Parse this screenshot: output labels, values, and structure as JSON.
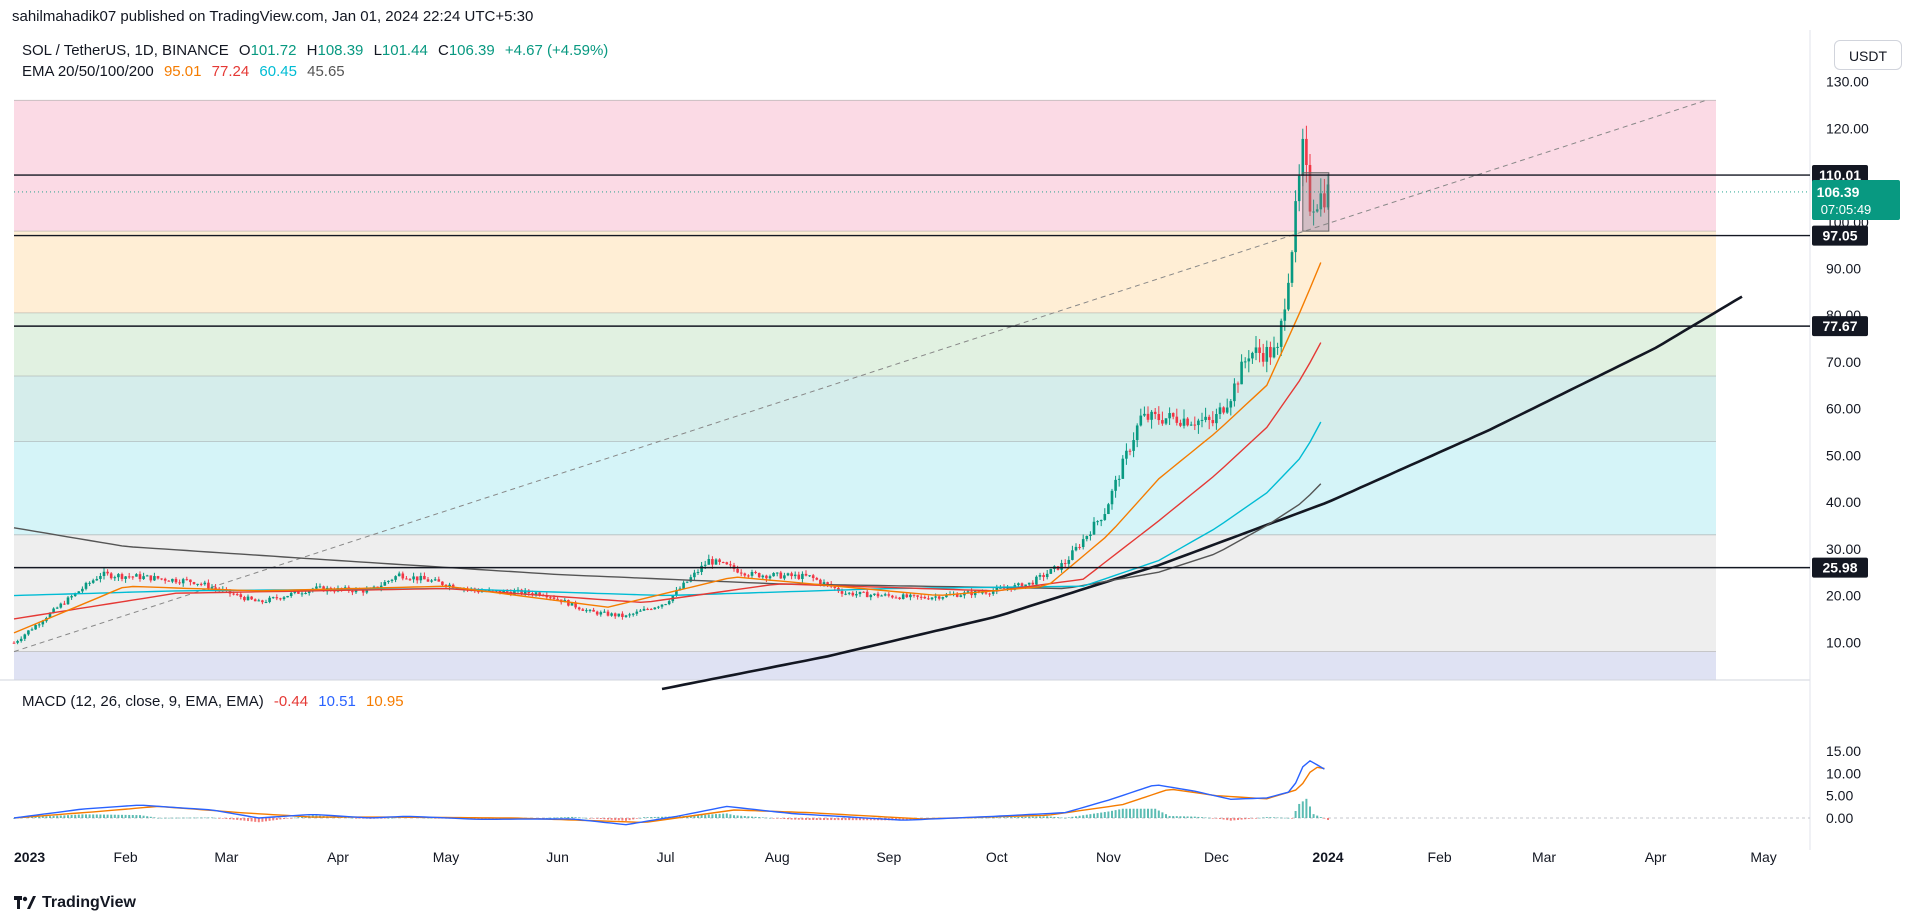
{
  "header": {
    "publisher": "sahilmahadik07 published on TradingView.com, Jan 01, 2024 22:24 UTC+5:30"
  },
  "symbol_legend": {
    "symbol": "SOL / TetherUS, 1D, BINANCE",
    "open_label": "O",
    "open": "101.72",
    "high_label": "H",
    "high": "108.39",
    "low_label": "L",
    "low": "101.44",
    "close_label": "C",
    "close": "106.39",
    "change": "+4.67 (+4.59%)"
  },
  "ema_legend": {
    "label": "EMA 20/50/100/200",
    "ema20": "95.01",
    "ema50": "77.24",
    "ema100": "60.45",
    "ema200": "45.65"
  },
  "macd_legend": {
    "label": "MACD (12, 26, close, 9, EMA, EMA)",
    "histogram": "-0.44",
    "macd": "10.51",
    "signal": "10.95"
  },
  "currency_button": "USDT",
  "colors": {
    "up": "#089981",
    "down": "#f23645",
    "ema20": "#f57c00",
    "ema50": "#e53935",
    "ema100": "#00bcd4",
    "ema200": "#555555",
    "macd": "#2962ff",
    "signal": "#f57c00"
  },
  "price_tags": {
    "last_price": "106.39",
    "countdown": "07:05:49",
    "levels": [
      "110.01",
      "97.05",
      "77.67",
      "25.98"
    ]
  },
  "footer": {
    "brand": "TradingView"
  },
  "chart_data": {
    "type": "candlestick",
    "price_axis_ticks": [
      "130.00",
      "120.00",
      "110.00",
      "100.00",
      "90.00",
      "80.00",
      "70.00",
      "60.00",
      "50.00",
      "40.00",
      "30.00",
      "20.00",
      "10.00"
    ],
    "price_ylim": [
      0,
      132
    ],
    "macd_axis_ticks": [
      "15.00",
      "10.00",
      "5.00",
      "0.00"
    ],
    "macd_ylim": [
      -3,
      16
    ],
    "time_axis_labels": [
      "2023",
      "Feb",
      "Mar",
      "Apr",
      "May",
      "Jun",
      "Jul",
      "Aug",
      "Sep",
      "Oct",
      "Nov",
      "Dec",
      "2024",
      "Feb",
      "Mar",
      "Apr",
      "May"
    ],
    "horizontal_levels": [
      110.01,
      97.05,
      77.67,
      25.98
    ],
    "fib_zones": [
      {
        "from": 126.0,
        "to": 98.0,
        "color": "#f8bbd0"
      },
      {
        "from": 98.0,
        "to": 80.5,
        "color": "#ffe0b2"
      },
      {
        "from": 80.5,
        "to": 67.0,
        "color": "#c8e6c9"
      },
      {
        "from": 67.0,
        "to": 53.0,
        "color": "#b2dfdb"
      },
      {
        "from": 53.0,
        "to": 33.0,
        "color": "#b2ebf2"
      },
      {
        "from": 33.0,
        "to": 8.0,
        "color": "#e0e0e0"
      },
      {
        "from": 8.0,
        "to": 0,
        "color": "#c5cae9"
      }
    ],
    "price_keypoints": [
      [
        "2023-01-01",
        9.9
      ],
      [
        "2023-01-14",
        18.0
      ],
      [
        "2023-01-25",
        24.5
      ],
      [
        "2023-02-05",
        24.0
      ],
      [
        "2023-02-20",
        23.0
      ],
      [
        "2023-03-10",
        18.5
      ],
      [
        "2023-03-25",
        21.5
      ],
      [
        "2023-04-10",
        21.0
      ],
      [
        "2023-04-18",
        24.5
      ],
      [
        "2023-05-10",
        21.0
      ],
      [
        "2023-05-28",
        20.5
      ],
      [
        "2023-06-10",
        16.5
      ],
      [
        "2023-06-20",
        15.5
      ],
      [
        "2023-07-01",
        18.5
      ],
      [
        "2023-07-13",
        27.5
      ],
      [
        "2023-07-25",
        24.5
      ],
      [
        "2023-08-10",
        24.0
      ],
      [
        "2023-08-20",
        20.5
      ],
      [
        "2023-09-10",
        19.5
      ],
      [
        "2023-09-30",
        21.0
      ],
      [
        "2023-10-10",
        22.5
      ],
      [
        "2023-10-20",
        27.0
      ],
      [
        "2023-10-31",
        38.0
      ],
      [
        "2023-11-10",
        58.0
      ],
      [
        "2023-11-20",
        58.0
      ],
      [
        "2023-11-30",
        57.0
      ],
      [
        "2023-12-05",
        63.0
      ],
      [
        "2023-12-10",
        72.0
      ],
      [
        "2023-12-18",
        72.0
      ],
      [
        "2023-12-22",
        95.0
      ],
      [
        "2023-12-25",
        115.0
      ],
      [
        "2023-12-27",
        104.0
      ],
      [
        "2024-01-01",
        106.4
      ]
    ],
    "ema20_keypoints": [
      [
        "2023-01-01",
        12.0
      ],
      [
        "2023-02-01",
        22.0
      ],
      [
        "2023-03-10",
        21.0
      ],
      [
        "2023-05-01",
        22.0
      ],
      [
        "2023-06-15",
        17.5
      ],
      [
        "2023-07-20",
        24.0
      ],
      [
        "2023-09-15",
        20.0
      ],
      [
        "2023-10-15",
        22.0
      ],
      [
        "2023-11-01",
        33.0
      ],
      [
        "2023-11-15",
        45.0
      ],
      [
        "2023-12-01",
        55.0
      ],
      [
        "2023-12-15",
        65.0
      ],
      [
        "2023-12-25",
        82.0
      ],
      [
        "2024-01-01",
        95.0
      ]
    ],
    "ema50_keypoints": [
      [
        "2023-01-01",
        15.0
      ],
      [
        "2023-02-15",
        20.5
      ],
      [
        "2023-05-01",
        21.5
      ],
      [
        "2023-06-25",
        18.5
      ],
      [
        "2023-08-01",
        22.5
      ],
      [
        "2023-10-01",
        21.0
      ],
      [
        "2023-10-25",
        23.5
      ],
      [
        "2023-11-15",
        36.0
      ],
      [
        "2023-12-01",
        46.0
      ],
      [
        "2023-12-15",
        56.0
      ],
      [
        "2023-12-25",
        67.0
      ],
      [
        "2024-01-01",
        77.0
      ]
    ],
    "ema100_keypoints": [
      [
        "2023-01-01",
        20.0
      ],
      [
        "2023-02-15",
        21.0
      ],
      [
        "2023-05-01",
        21.5
      ],
      [
        "2023-07-01",
        20.0
      ],
      [
        "2023-09-01",
        21.5
      ],
      [
        "2023-10-25",
        22.0
      ],
      [
        "2023-11-15",
        27.5
      ],
      [
        "2023-12-01",
        34.5
      ],
      [
        "2023-12-15",
        42.0
      ],
      [
        "2023-12-25",
        50.0
      ],
      [
        "2024-01-01",
        60.0
      ]
    ],
    "ema200_keypoints": [
      [
        "2023-01-01",
        34.5
      ],
      [
        "2023-02-01",
        30.5
      ],
      [
        "2023-04-01",
        27.5
      ],
      [
        "2023-06-01",
        24.5
      ],
      [
        "2023-08-01",
        22.5
      ],
      [
        "2023-10-20",
        21.5
      ],
      [
        "2023-11-15",
        25.0
      ],
      [
        "2023-12-01",
        29.0
      ],
      [
        "2023-12-15",
        35.0
      ],
      [
        "2023-12-25",
        40.0
      ],
      [
        "2024-01-01",
        45.5
      ]
    ],
    "curve_keypoints": [
      [
        "2023-06-30",
        0.0
      ],
      [
        "2023-08-15",
        7.0
      ],
      [
        "2023-10-01",
        15.5
      ],
      [
        "2023-11-15",
        26.5
      ],
      [
        "2024-01-01",
        40.0
      ],
      [
        "2024-02-15",
        55.5
      ],
      [
        "2024-04-01",
        73.0
      ],
      [
        "2024-04-25",
        84.0
      ]
    ],
    "trendline": {
      "from": [
        "2023-01-01",
        8.0
      ],
      "to": [
        "2024-04-15",
        126.0
      ]
    },
    "macd_keypoints": [
      [
        "2023-01-01",
        0.0
      ],
      [
        "2023-01-20",
        2.0
      ],
      [
        "2023-02-05",
        2.9
      ],
      [
        "2023-02-25",
        1.8
      ],
      [
        "2023-03-10",
        0.0
      ],
      [
        "2023-03-25",
        0.8
      ],
      [
        "2023-04-10",
        0.0
      ],
      [
        "2023-04-20",
        0.4
      ],
      [
        "2023-05-10",
        -0.3
      ],
      [
        "2023-06-05",
        -0.2
      ],
      [
        "2023-06-20",
        -1.5
      ],
      [
        "2023-07-05",
        0.5
      ],
      [
        "2023-07-18",
        2.6
      ],
      [
        "2023-08-05",
        1.0
      ],
      [
        "2023-09-05",
        -0.5
      ],
      [
        "2023-10-01",
        0.4
      ],
      [
        "2023-10-20",
        1.2
      ],
      [
        "2023-11-01",
        4.0
      ],
      [
        "2023-11-14",
        7.5
      ],
      [
        "2023-11-25",
        6.0
      ],
      [
        "2023-12-05",
        4.2
      ],
      [
        "2023-12-15",
        4.5
      ],
      [
        "2023-12-22",
        6.0
      ],
      [
        "2023-12-26",
        13.3
      ],
      [
        "2024-01-01",
        10.5
      ]
    ],
    "signal_keypoints": [
      [
        "2023-01-01",
        0.0
      ],
      [
        "2023-01-25",
        1.5
      ],
      [
        "2023-02-10",
        2.6
      ],
      [
        "2023-03-05",
        1.2
      ],
      [
        "2023-03-25",
        0.2
      ],
      [
        "2023-04-15",
        0.2
      ],
      [
        "2023-05-20",
        0.0
      ],
      [
        "2023-06-25",
        -1.0
      ],
      [
        "2023-07-20",
        1.8
      ],
      [
        "2023-08-10",
        1.2
      ],
      [
        "2023-09-10",
        -0.2
      ],
      [
        "2023-10-15",
        0.6
      ],
      [
        "2023-11-05",
        3.0
      ],
      [
        "2023-11-18",
        6.5
      ],
      [
        "2023-12-01",
        5.0
      ],
      [
        "2023-12-15",
        4.3
      ],
      [
        "2023-12-24",
        6.5
      ],
      [
        "2023-12-28",
        11.5
      ],
      [
        "2024-01-01",
        10.95
      ]
    ]
  }
}
